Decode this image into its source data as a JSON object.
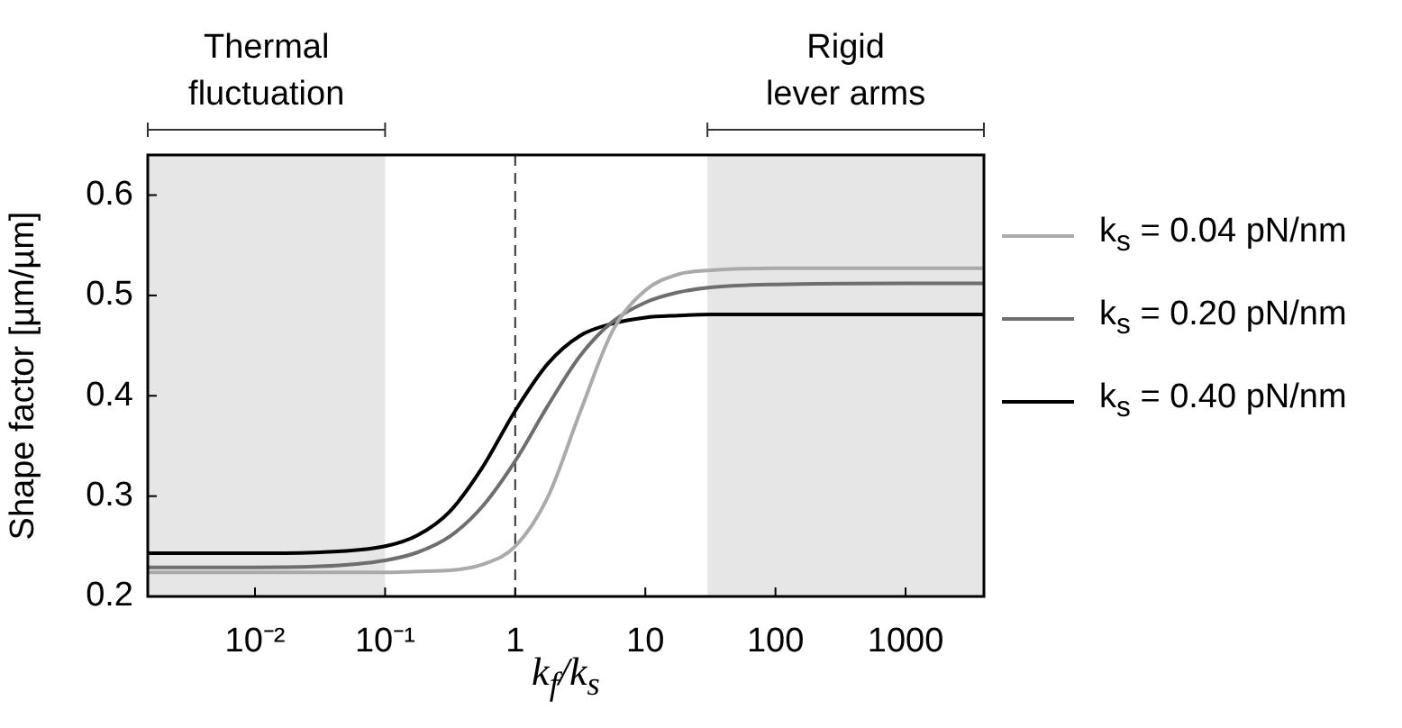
{
  "chart_data": {
    "type": "line",
    "xlabel": "k$_{f}$/k$_{s}$",
    "ylabel": "Shape factor [µm/µm]",
    "x": [
      0.0015,
      0.01,
      0.0316,
      0.1,
      0.178,
      0.316,
      0.562,
      1,
      1.78,
      3.16,
      5.62,
      10,
      17.8,
      31.6,
      100,
      1000,
      4000
    ],
    "series": [
      {
        "name": "k$_{s}$ = 0.04 pN/nm",
        "color": "#aaaaaa",
        "values": [
          0.224,
          0.224,
          0.224,
          0.224,
          0.225,
          0.226,
          0.232,
          0.25,
          0.299,
          0.384,
          0.465,
          0.505,
          0.521,
          0.525,
          0.527,
          0.527,
          0.527
        ]
      },
      {
        "name": "k$_{s}$ = 0.20 pN/nm",
        "color": "#6e6e6e",
        "values": [
          0.229,
          0.229,
          0.23,
          0.236,
          0.244,
          0.26,
          0.29,
          0.335,
          0.39,
          0.44,
          0.474,
          0.493,
          0.503,
          0.508,
          0.511,
          0.512,
          0.512
        ]
      },
      {
        "name": "k$_{s}$ = 0.40 pN/nm",
        "color": "#000000",
        "values": [
          0.243,
          0.243,
          0.244,
          0.25,
          0.261,
          0.285,
          0.329,
          0.385,
          0.432,
          0.46,
          0.472,
          0.478,
          0.48,
          0.481,
          0.481,
          0.481,
          0.481
        ]
      }
    ],
    "log": "x",
    "xlim": [
      0.0015,
      4000
    ],
    "xticks": [
      {
        "value": 0.01,
        "label": "10⁻²"
      },
      {
        "value": 0.1,
        "label": "10⁻¹"
      },
      1,
      10,
      100,
      1000
    ],
    "ylim": [
      0.2,
      0.64
    ],
    "yticks": [
      0.2,
      0.3,
      0.4,
      0.5,
      0.6
    ],
    "bands": [
      {
        "axis": "x",
        "from": 0.0015,
        "to": 0.1,
        "label": "Thermal fluctuation",
        "color": "#e6e6e6"
      },
      {
        "axis": "x",
        "from": 30,
        "to": 4000,
        "label": "Rigid lever arms",
        "color": "#e6e6e6"
      }
    ],
    "ref_lines": [
      {
        "axis": "x",
        "value": 1,
        "line_style": "dashed",
        "color": "#333333"
      }
    ],
    "grid": false,
    "legend": "right",
    "marker": "none",
    "line_style": "solid"
  }
}
